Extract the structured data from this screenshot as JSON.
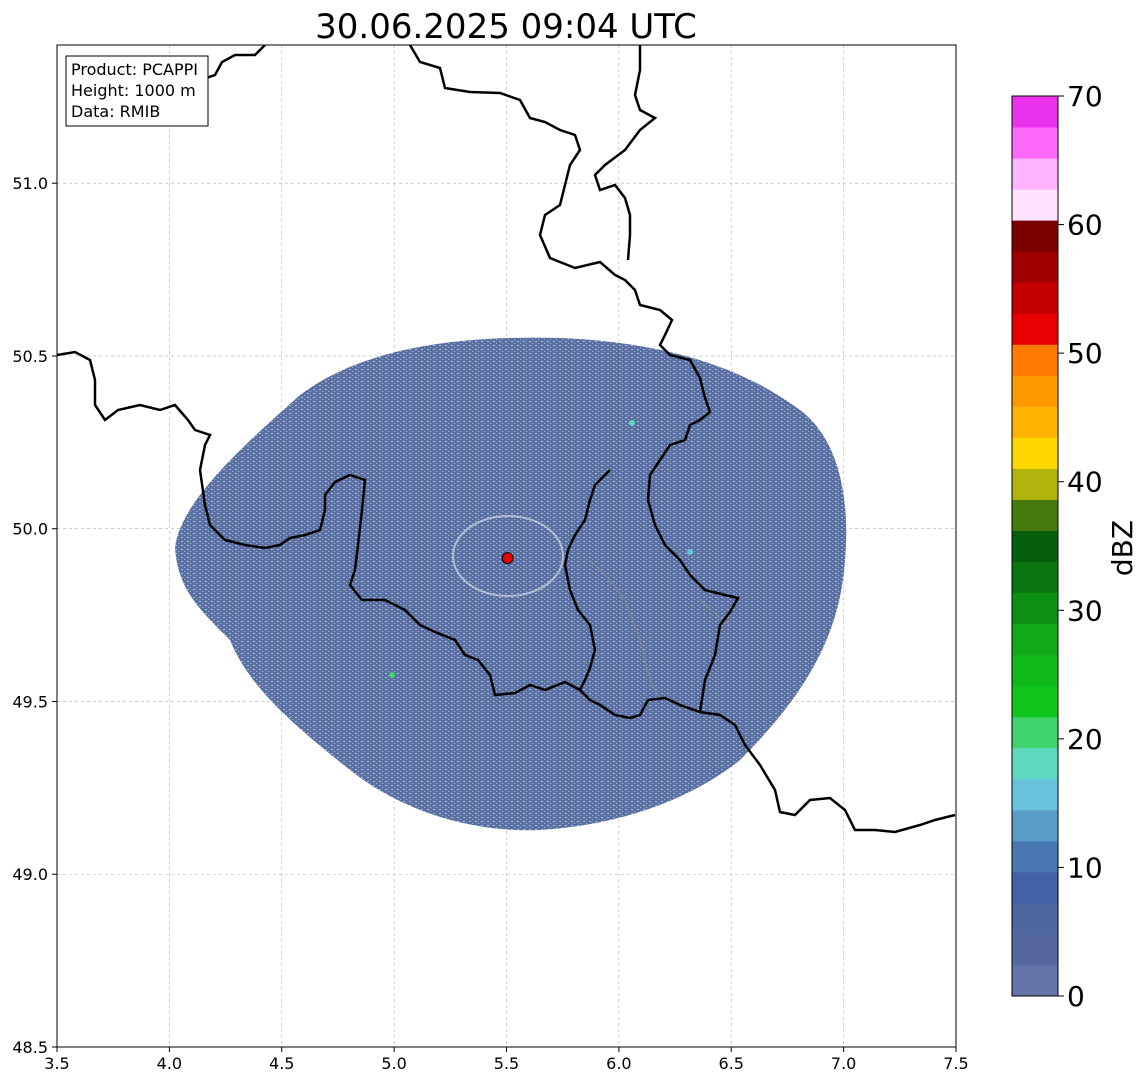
{
  "title": "30.06.2025 09:04 UTC",
  "info_box": {
    "lines": [
      "Product: PCAPPI",
      "Height: 1000 m",
      "Data: RMIB"
    ]
  },
  "map": {
    "lon_range": [
      3.5,
      7.5
    ],
    "lat_range": [
      48.5,
      51.4
    ],
    "x_ticks": [
      "3.5",
      "4.0",
      "4.5",
      "5.0",
      "5.5",
      "6.0",
      "6.5",
      "7.0",
      "7.5"
    ],
    "y_ticks": [
      "48.5",
      "49.0",
      "49.5",
      "50.0",
      "50.5",
      "51.0"
    ],
    "grid": true,
    "radar_site": {
      "lon": 5.505,
      "lat": 49.915,
      "color": "#e00000"
    }
  },
  "colorbar": {
    "label": "dBZ",
    "ticks": [
      "0",
      "10",
      "20",
      "30",
      "40",
      "50",
      "60",
      "70"
    ],
    "range": [
      0,
      70
    ],
    "colors": [
      "#6574a8",
      "#56679f",
      "#5066a0",
      "#4261a8",
      "#4a78b2",
      "#5a9dc8",
      "#67c3dc",
      "#5fd8c0",
      "#3fd46c",
      "#10c61c",
      "#10b81a",
      "#12a818",
      "#0e8f14",
      "#0a7610",
      "#065f0a",
      "#477a0c",
      "#b0b40a",
      "#fed600",
      "#feb400",
      "#fe9a00",
      "#ff7a00",
      "#e60000",
      "#c40000",
      "#a00000",
      "#7a0000",
      "#fee2fe",
      "#feb4fe",
      "#fc6afc",
      "#ea32ea"
    ]
  },
  "echo_color": "#5068a0"
}
